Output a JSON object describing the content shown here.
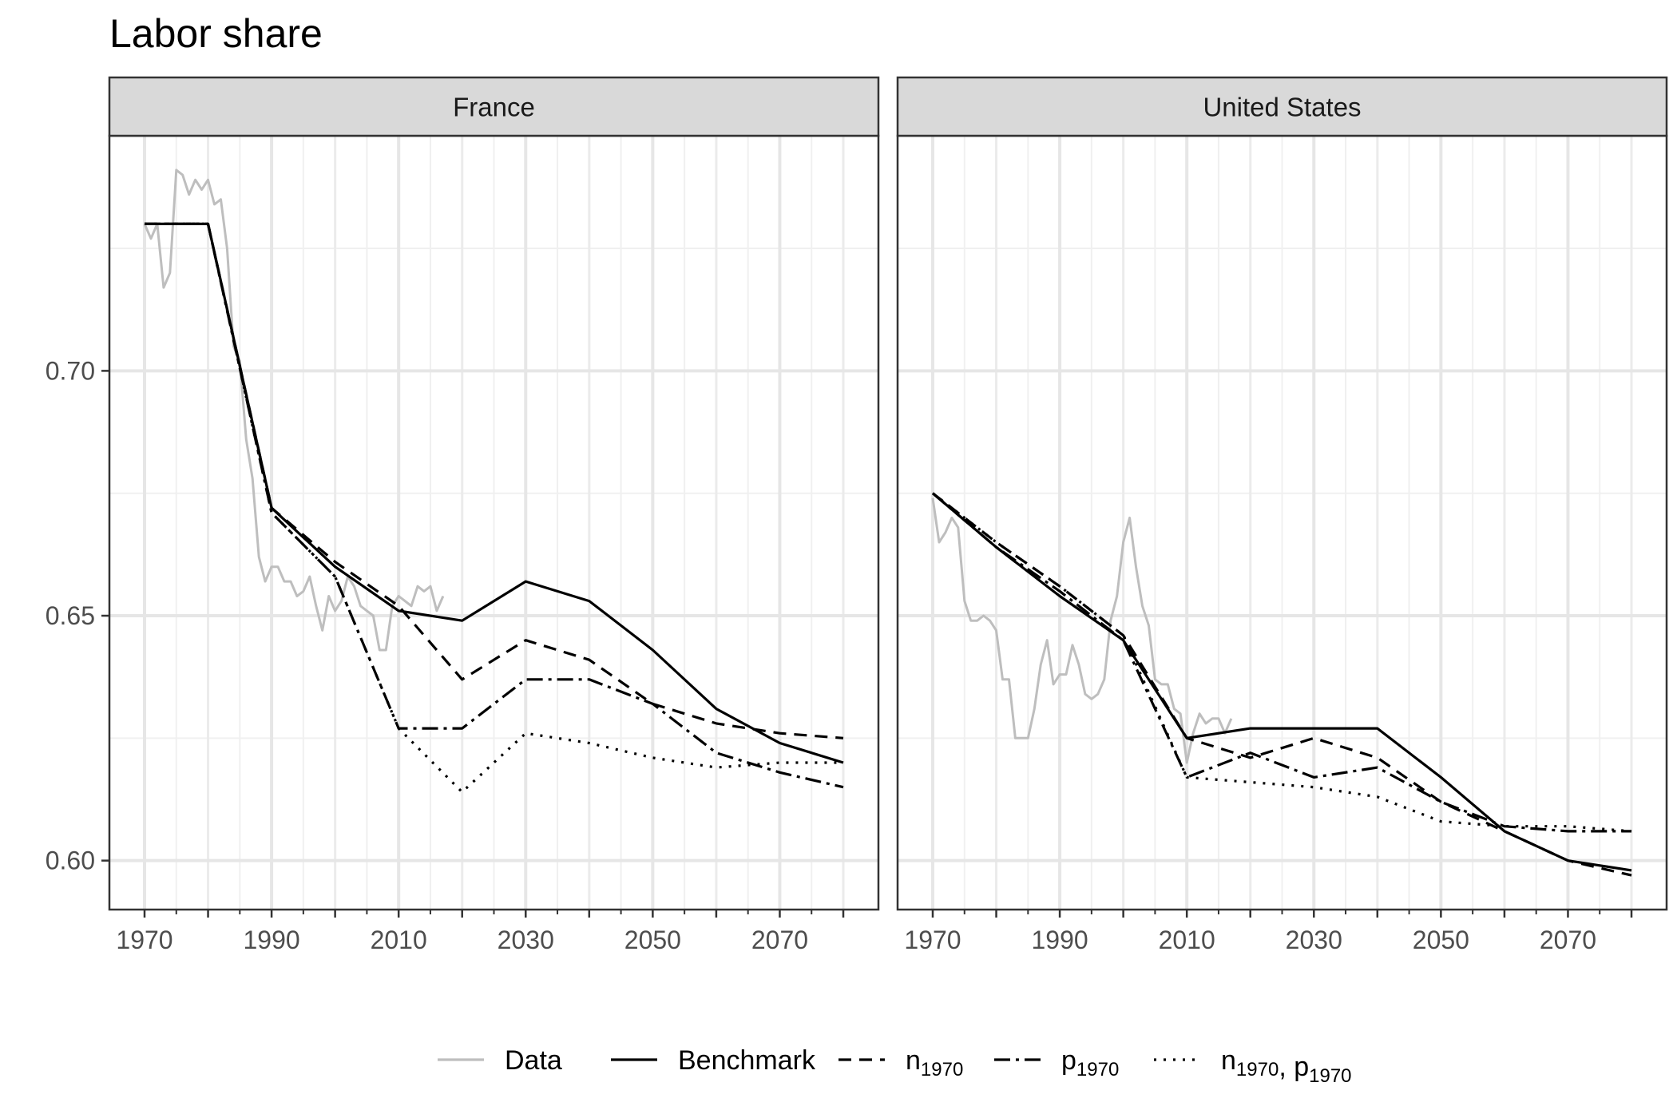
{
  "chart_data": {
    "type": "line",
    "title": "Labor share",
    "xlabel": "",
    "ylabel": "",
    "xlim": [
      1970,
      2080
    ],
    "ylim": [
      0.59,
      0.748
    ],
    "x_ticks": [
      1970,
      1990,
      2010,
      2030,
      2050,
      2070
    ],
    "x_minor_ticks": [
      1980,
      2000,
      2020,
      2040,
      2060,
      2080
    ],
    "y_ticks": [
      0.6,
      0.65,
      0.7
    ],
    "y_tick_labels": [
      "0.60",
      "0.65",
      "0.70"
    ],
    "grid": true,
    "legend_position": "bottom",
    "legend": [
      {
        "key": "data",
        "label": "Data",
        "sub": ""
      },
      {
        "key": "benchmark",
        "label": "Benchmark",
        "sub": ""
      },
      {
        "key": "n1970",
        "label": "n",
        "sub": "1970"
      },
      {
        "key": "p1970",
        "label": "p",
        "sub": "1970"
      },
      {
        "key": "np1970",
        "label": "n",
        "sub": "1970",
        "label2": ", p",
        "sub2": "1970"
      }
    ],
    "styles": {
      "data": {
        "color": "#bebebe",
        "dash": ""
      },
      "benchmark": {
        "color": "#000000",
        "dash": ""
      },
      "n1970": {
        "color": "#000000",
        "dash": "16 10"
      },
      "p1970": {
        "color": "#000000",
        "dash": "20 7 4 7"
      },
      "np1970": {
        "color": "#000000",
        "dash": "3 9"
      }
    },
    "panels": [
      {
        "name": "France",
        "series": [
          {
            "key": "data",
            "x": [
              1970,
              1971,
              1972,
              1973,
              1974,
              1975,
              1976,
              1977,
              1978,
              1979,
              1980,
              1981,
              1982,
              1983,
              1984,
              1985,
              1986,
              1987,
              1988,
              1989,
              1990,
              1991,
              1992,
              1993,
              1994,
              1995,
              1996,
              1997,
              1998,
              1999,
              2000,
              2001,
              2002,
              2003,
              2004,
              2005,
              2006,
              2007,
              2008,
              2009,
              2010,
              2011,
              2012,
              2013,
              2014,
              2015,
              2016,
              2017
            ],
            "y": [
              0.73,
              0.727,
              0.73,
              0.717,
              0.72,
              0.741,
              0.74,
              0.736,
              0.739,
              0.737,
              0.739,
              0.734,
              0.735,
              0.725,
              0.705,
              0.702,
              0.686,
              0.678,
              0.662,
              0.657,
              0.66,
              0.66,
              0.657,
              0.657,
              0.654,
              0.655,
              0.658,
              0.652,
              0.647,
              0.654,
              0.651,
              0.653,
              0.658,
              0.656,
              0.652,
              0.651,
              0.65,
              0.643,
              0.643,
              0.652,
              0.654,
              0.653,
              0.652,
              0.656,
              0.655,
              0.656,
              0.651,
              0.654
            ]
          },
          {
            "key": "benchmark",
            "x": [
              1970,
              1980,
              1990,
              2000,
              2010,
              2020,
              2030,
              2040,
              2050,
              2060,
              2070,
              2080
            ],
            "y": [
              0.73,
              0.73,
              0.672,
              0.66,
              0.651,
              0.649,
              0.657,
              0.653,
              0.643,
              0.631,
              0.624,
              0.62
            ]
          },
          {
            "key": "n1970",
            "x": [
              1970,
              1980,
              1990,
              2000,
              2010,
              2020,
              2030,
              2040,
              2050,
              2060,
              2070,
              2080
            ],
            "y": [
              0.73,
              0.73,
              0.672,
              0.661,
              0.652,
              0.637,
              0.645,
              0.641,
              0.632,
              0.628,
              0.626,
              0.625
            ]
          },
          {
            "key": "p1970",
            "x": [
              1970,
              1980,
              1990,
              2000,
              2010,
              2020,
              2030,
              2040,
              2050,
              2060,
              2070,
              2080
            ],
            "y": [
              0.73,
              0.73,
              0.671,
              0.658,
              0.627,
              0.627,
              0.637,
              0.637,
              0.632,
              0.622,
              0.618,
              0.615
            ]
          },
          {
            "key": "np1970",
            "x": [
              1970,
              1980,
              1990,
              2000,
              2010,
              2020,
              2030,
              2040,
              2050,
              2060,
              2070,
              2080
            ],
            "y": [
              0.73,
              0.73,
              0.671,
              0.658,
              0.627,
              0.614,
              0.626,
              0.624,
              0.621,
              0.619,
              0.62,
              0.62
            ]
          }
        ]
      },
      {
        "name": "United States",
        "series": [
          {
            "key": "data",
            "x": [
              1970,
              1971,
              1972,
              1973,
              1974,
              1975,
              1976,
              1977,
              1978,
              1979,
              1980,
              1981,
              1982,
              1983,
              1984,
              1985,
              1986,
              1987,
              1988,
              1989,
              1990,
              1991,
              1992,
              1993,
              1994,
              1995,
              1996,
              1997,
              1998,
              1999,
              2000,
              2001,
              2002,
              2003,
              2004,
              2005,
              2006,
              2007,
              2008,
              2009,
              2010,
              2011,
              2012,
              2013,
              2014,
              2015,
              2016,
              2017
            ],
            "y": [
              0.674,
              0.665,
              0.667,
              0.67,
              0.668,
              0.653,
              0.649,
              0.649,
              0.65,
              0.649,
              0.647,
              0.637,
              0.637,
              0.625,
              0.625,
              0.625,
              0.631,
              0.64,
              0.645,
              0.636,
              0.638,
              0.638,
              0.644,
              0.64,
              0.634,
              0.633,
              0.634,
              0.637,
              0.649,
              0.654,
              0.665,
              0.67,
              0.66,
              0.652,
              0.648,
              0.637,
              0.636,
              0.636,
              0.631,
              0.63,
              0.62,
              0.626,
              0.63,
              0.628,
              0.629,
              0.629,
              0.626,
              0.629
            ]
          },
          {
            "key": "benchmark",
            "x": [
              1970,
              1980,
              1990,
              2000,
              2010,
              2020,
              2030,
              2040,
              2050,
              2060,
              2070,
              2080
            ],
            "y": [
              0.675,
              0.664,
              0.654,
              0.645,
              0.625,
              0.627,
              0.627,
              0.627,
              0.617,
              0.606,
              0.6,
              0.598
            ]
          },
          {
            "key": "n1970",
            "x": [
              1970,
              1980,
              1990,
              2000,
              2010,
              2020,
              2030,
              2040,
              2050,
              2060,
              2070,
              2080
            ],
            "y": [
              0.675,
              0.665,
              0.656,
              0.646,
              0.625,
              0.621,
              0.625,
              0.621,
              0.612,
              0.606,
              0.6,
              0.597
            ]
          },
          {
            "key": "p1970",
            "x": [
              1970,
              1980,
              1990,
              2000,
              2010,
              2020,
              2030,
              2040,
              2050,
              2060,
              2070,
              2080
            ],
            "y": [
              0.675,
              0.664,
              0.655,
              0.645,
              0.617,
              0.622,
              0.617,
              0.619,
              0.612,
              0.607,
              0.606,
              0.606
            ]
          },
          {
            "key": "np1970",
            "x": [
              1970,
              1980,
              1990,
              2000,
              2010,
              2020,
              2030,
              2040,
              2050,
              2060,
              2070,
              2080
            ],
            "y": [
              0.675,
              0.665,
              0.656,
              0.646,
              0.617,
              0.616,
              0.615,
              0.613,
              0.608,
              0.607,
              0.607,
              0.606
            ]
          }
        ]
      }
    ]
  }
}
